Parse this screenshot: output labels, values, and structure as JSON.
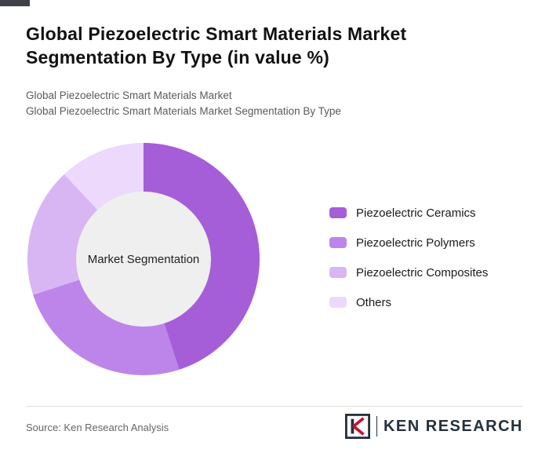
{
  "header": {
    "title": "Global Piezoelectric Smart Materials Market Segmentation By Type (in value %)",
    "subtitle_line1": "Global Piezoelectric Smart Materials Market",
    "subtitle_line2": "Global Piezoelectric Smart Materials Market Segmentation By Type"
  },
  "chart_data": {
    "type": "pie",
    "variant": "donut",
    "title": "Global Piezoelectric Smart Materials Market Segmentation By Type (in value %)",
    "units": "value %",
    "center_label": "Market Segmentation",
    "legend_position": "right",
    "start_angle_deg": 0,
    "direction": "clockwise",
    "series": [
      {
        "name": "Piezoelectric Ceramics",
        "value": 45,
        "color": "#a55ed8"
      },
      {
        "name": "Piezoelectric Polymers",
        "value": 25,
        "color": "#bd85ea"
      },
      {
        "name": "Piezoelectric Composites",
        "value": 18,
        "color": "#d8b5f3"
      },
      {
        "name": "Others",
        "value": 12,
        "color": "#ecd9fb"
      }
    ],
    "hole_color": "#efefef"
  },
  "footer": {
    "source": "Source: Ken Research Analysis",
    "brand_name": "KEN RESEARCH"
  },
  "colors": {
    "brand_dark": "#25303b",
    "brand_red": "#c41230",
    "title_text": "#111111",
    "subtitle_text": "#5a5a5a"
  }
}
